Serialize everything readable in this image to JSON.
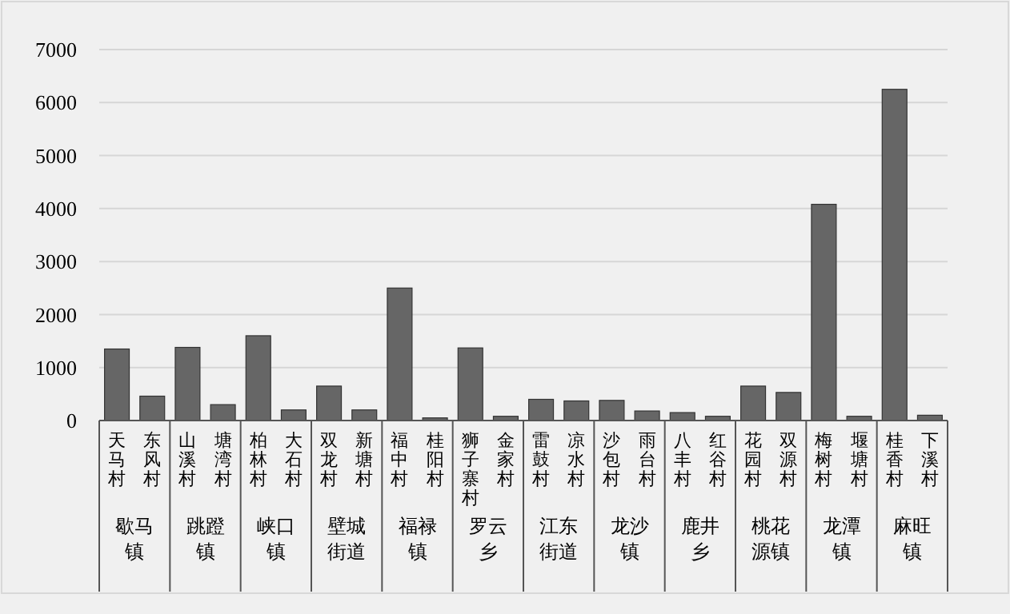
{
  "chart_data": {
    "type": "bar",
    "categories": [
      "天马村",
      "东风村",
      "山溪村",
      "塘湾村",
      "柏林村",
      "大石村",
      "双龙村",
      "新塘村",
      "福中村",
      "桂阳村",
      "狮子寨村",
      "金家村",
      "雷鼓村",
      "凉水村",
      "沙包村",
      "雨台村",
      "八丰村",
      "红谷村",
      "花园村",
      "双源村",
      "梅树村",
      "堰塘村",
      "桂香村",
      "下溪村"
    ],
    "values": [
      1350,
      460,
      1380,
      300,
      1600,
      200,
      650,
      200,
      2500,
      50,
      1370,
      80,
      400,
      370,
      380,
      180,
      150,
      80,
      650,
      530,
      4080,
      80,
      6250,
      100
    ],
    "color": "#666666",
    "ylim": [
      0,
      7000
    ],
    "yticks": [
      0,
      1000,
      2000,
      3000,
      4000,
      5000,
      6000,
      7000
    ],
    "grid": "y",
    "annotations": [
      "歇马镇",
      "跳蹬镇",
      "峡口镇",
      "壁城街道",
      "福禄镇",
      "罗云乡",
      "江东街道",
      "龙沙镇",
      "鹿井乡",
      "桃花源镇",
      "龙潭镇",
      "麻旺镇"
    ]
  }
}
